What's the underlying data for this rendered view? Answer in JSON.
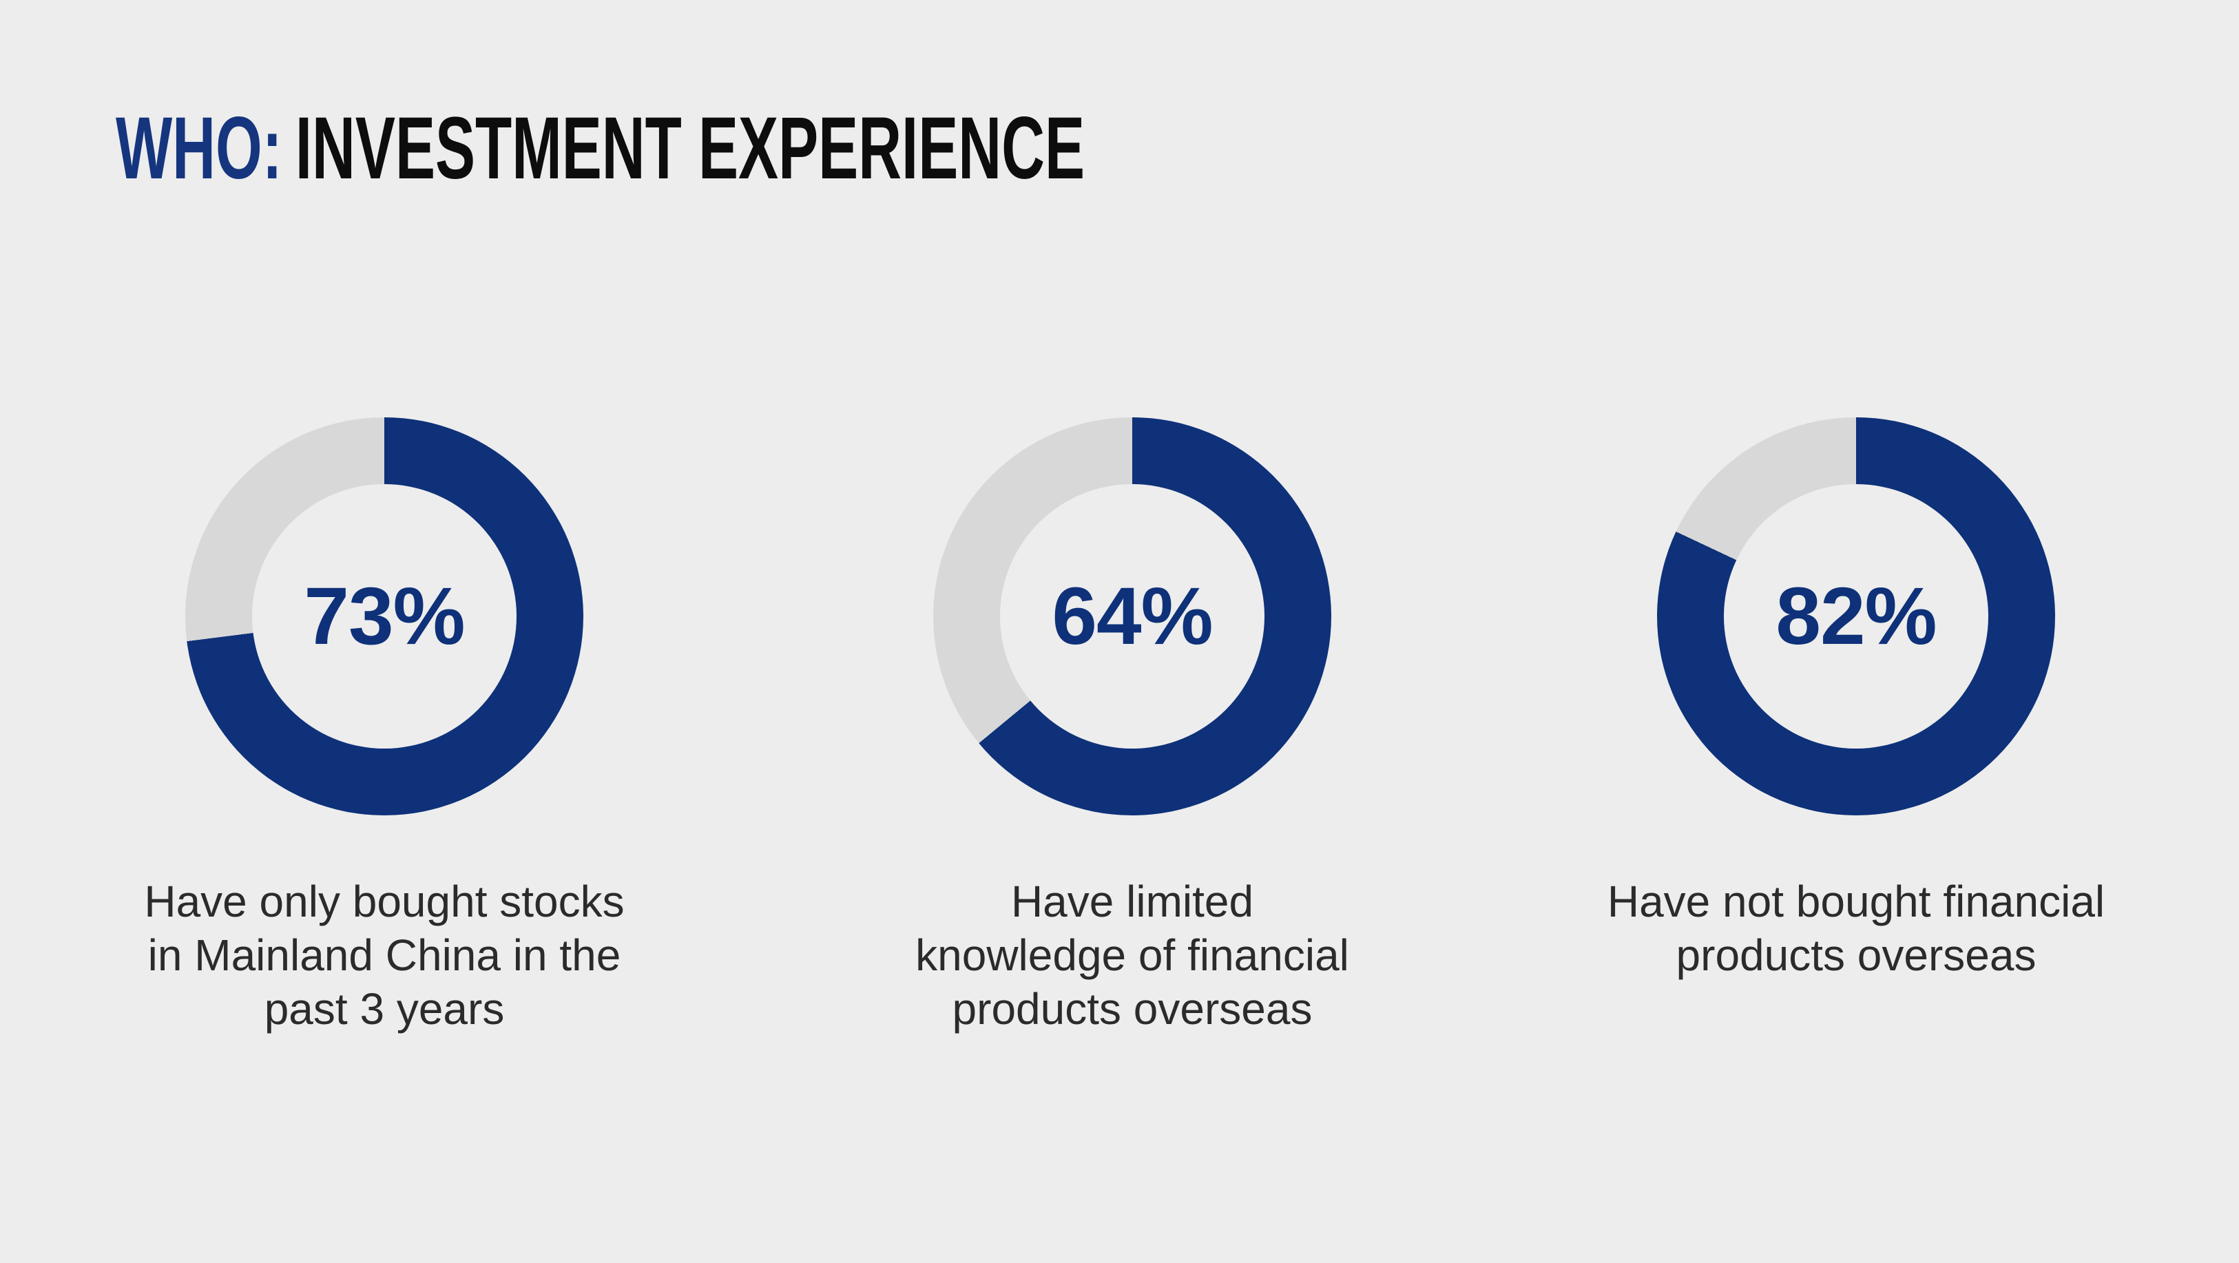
{
  "colors": {
    "page_background": "#ededed",
    "accent": "#0e3179",
    "track": "#d8d8d8",
    "hole": "#ededed",
    "title_accent": "#15357e",
    "title_text": "#0d0d0d",
    "caption_text": "#2b2b2b"
  },
  "header": {
    "title_prefix": "WHO:",
    "title_rest": "INVESTMENT EXPERIENCE"
  },
  "chart_data": [
    {
      "type": "pie",
      "subtype": "donut",
      "label": "73%",
      "value": 73,
      "start_angle_deg": 0,
      "direction": "clockwise",
      "caption": "Have only bought stocks\nin Mainland China in the\npast 3 years",
      "segments": [
        {
          "name": "share",
          "value": 73,
          "color": "#0e3179"
        },
        {
          "name": "remainder",
          "value": 27,
          "color": "#d8d8d8"
        }
      ]
    },
    {
      "type": "pie",
      "subtype": "donut",
      "label": "64%",
      "value": 64,
      "start_angle_deg": 0,
      "direction": "clockwise",
      "caption": "Have limited\nknowledge of financial\nproducts overseas",
      "segments": [
        {
          "name": "share",
          "value": 64,
          "color": "#0e3179"
        },
        {
          "name": "remainder",
          "value": 36,
          "color": "#d8d8d8"
        }
      ]
    },
    {
      "type": "pie",
      "subtype": "donut",
      "label": "82%",
      "value": 82,
      "start_angle_deg": 0,
      "direction": "clockwise",
      "caption": "Have not bought financial\nproducts overseas",
      "segments": [
        {
          "name": "share",
          "value": 82,
          "color": "#0e3179"
        },
        {
          "name": "remainder",
          "value": 18,
          "color": "#d8d8d8"
        }
      ]
    }
  ]
}
